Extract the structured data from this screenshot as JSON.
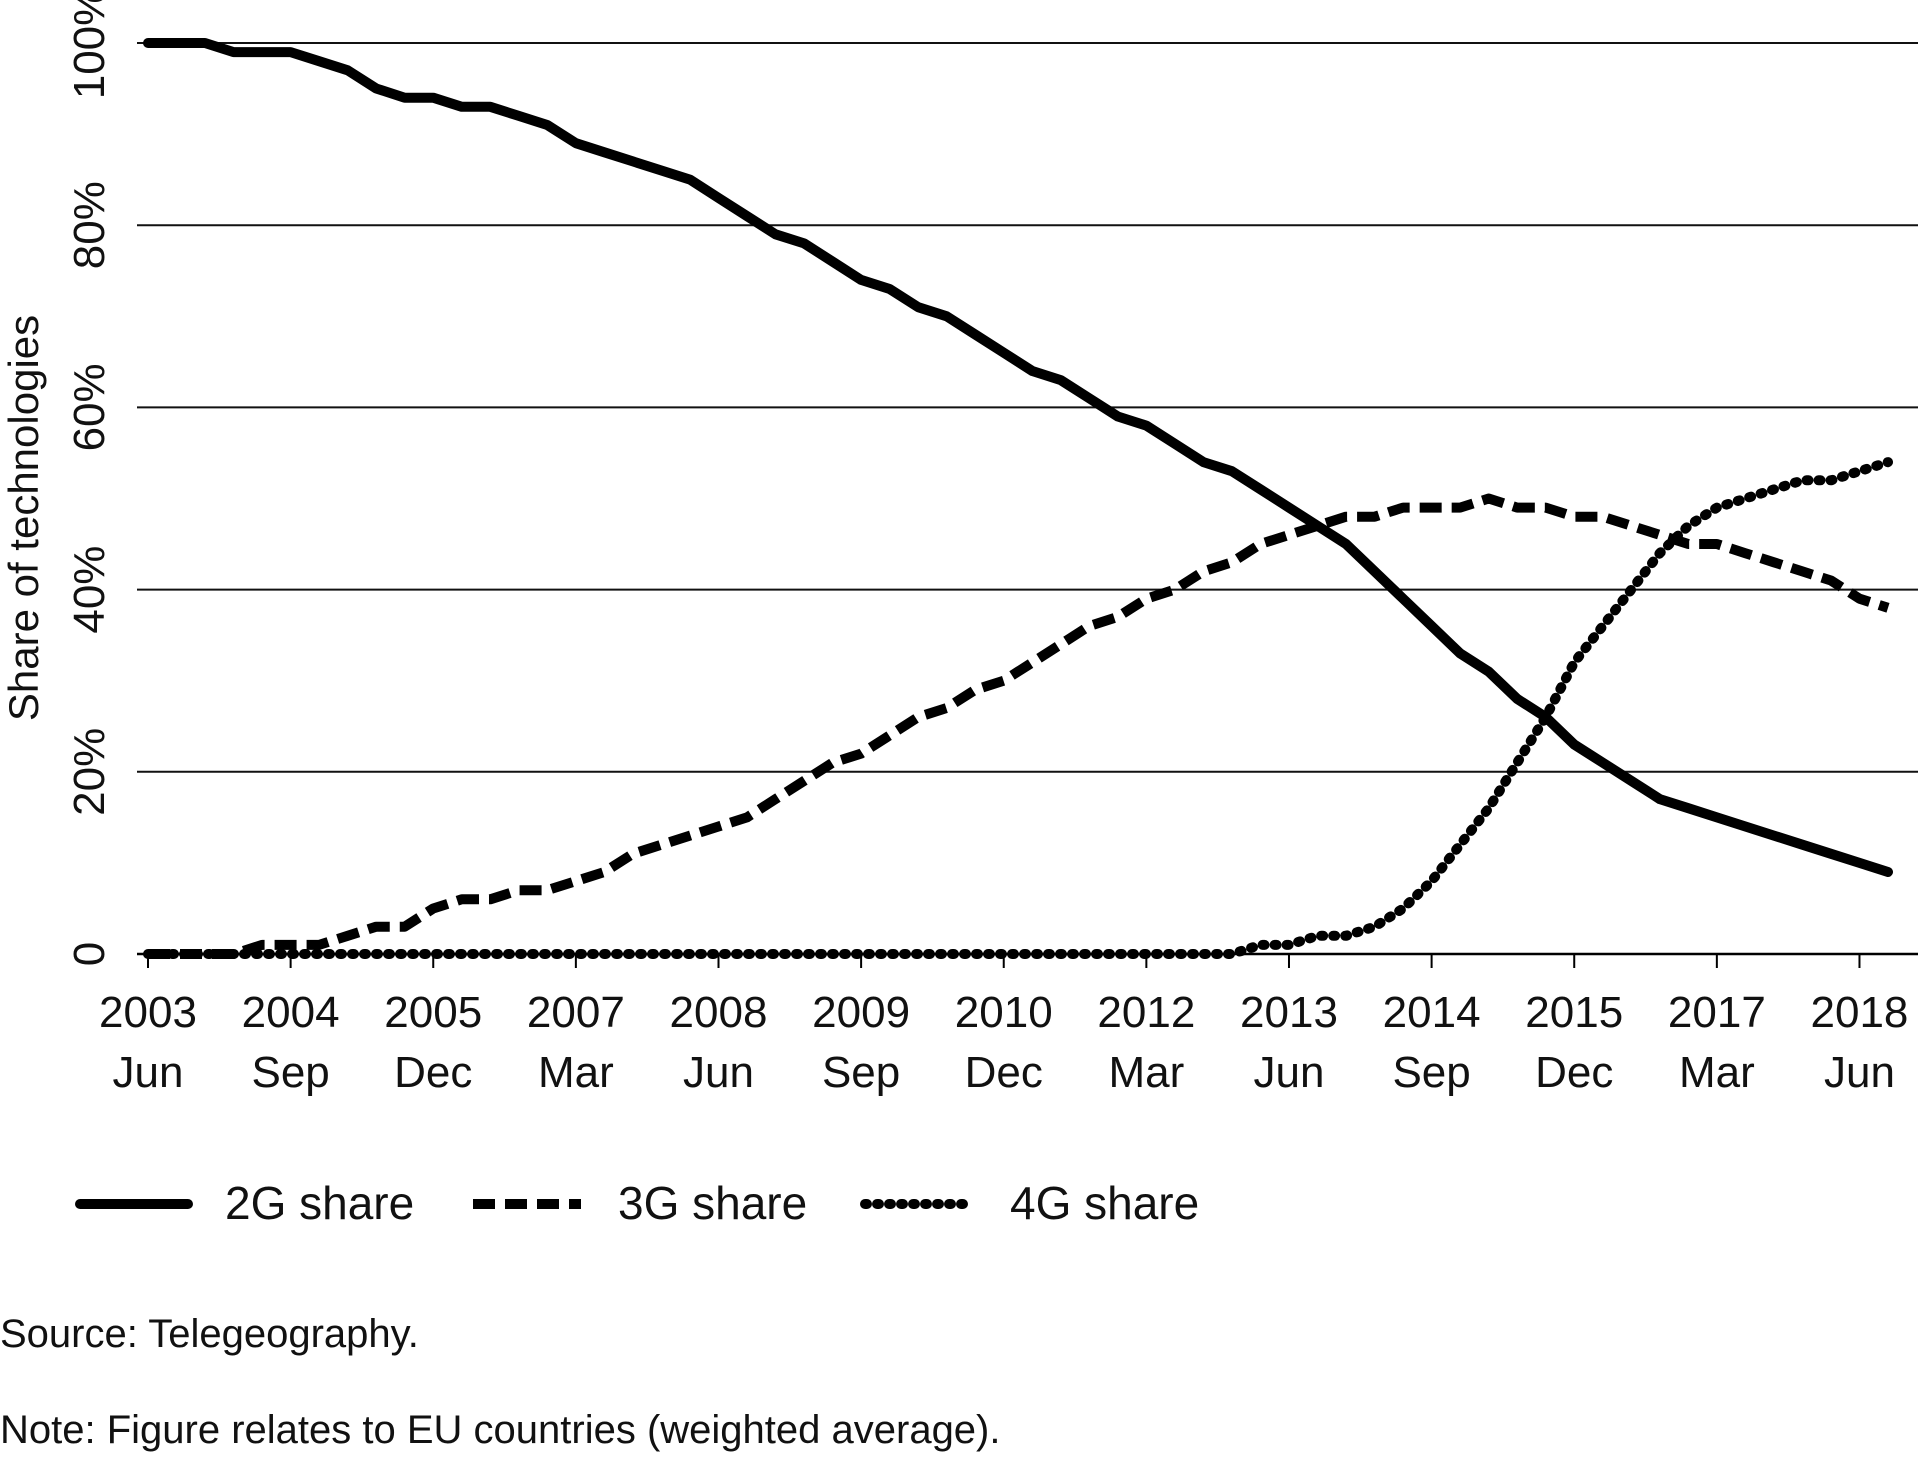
{
  "chart_data": {
    "type": "line",
    "title": "",
    "ylabel": "Share of technologies",
    "xlabel": "",
    "ylim": [
      0,
      100
    ],
    "grid": "horizontal",
    "legend_position": "bottom",
    "y_ticks": [
      {
        "value": 0,
        "label": "0"
      },
      {
        "value": 20,
        "label": "20%"
      },
      {
        "value": 40,
        "label": "40%"
      },
      {
        "value": 60,
        "label": "60%"
      },
      {
        "value": 80,
        "label": "80%"
      },
      {
        "value": 100,
        "label": "100%"
      }
    ],
    "x_ticks": [
      {
        "year": "2003",
        "month": "Jun"
      },
      {
        "year": "2004",
        "month": "Sep"
      },
      {
        "year": "2005",
        "month": "Dec"
      },
      {
        "year": "2007",
        "month": "Mar"
      },
      {
        "year": "2008",
        "month": "Jun"
      },
      {
        "year": "2009",
        "month": "Sep"
      },
      {
        "year": "2010",
        "month": "Dec"
      },
      {
        "year": "2012",
        "month": "Mar"
      },
      {
        "year": "2013",
        "month": "Jun"
      },
      {
        "year": "2014",
        "month": "Sep"
      },
      {
        "year": "2015",
        "month": "Dec"
      },
      {
        "year": "2017",
        "month": "Mar"
      },
      {
        "year": "2018",
        "month": "Jun"
      }
    ],
    "x": [
      "2003-06",
      "2003-09",
      "2003-12",
      "2004-03",
      "2004-06",
      "2004-09",
      "2004-12",
      "2005-03",
      "2005-06",
      "2005-09",
      "2005-12",
      "2006-03",
      "2006-06",
      "2006-09",
      "2006-12",
      "2007-03",
      "2007-06",
      "2007-09",
      "2007-12",
      "2008-03",
      "2008-06",
      "2008-09",
      "2008-12",
      "2009-03",
      "2009-06",
      "2009-09",
      "2009-12",
      "2010-03",
      "2010-06",
      "2010-09",
      "2010-12",
      "2011-03",
      "2011-06",
      "2011-09",
      "2011-12",
      "2012-03",
      "2012-06",
      "2012-09",
      "2012-12",
      "2013-03",
      "2013-06",
      "2013-09",
      "2013-12",
      "2014-03",
      "2014-06",
      "2014-09",
      "2014-12",
      "2015-03",
      "2015-06",
      "2015-09",
      "2015-12",
      "2016-03",
      "2016-06",
      "2016-09",
      "2016-12",
      "2017-03",
      "2017-06",
      "2017-09",
      "2017-12",
      "2018-03",
      "2018-06",
      "2018-09"
    ],
    "series": [
      {
        "name": "2G share",
        "style": "solid",
        "values": [
          100,
          100,
          100,
          99,
          99,
          99,
          98,
          97,
          95,
          94,
          94,
          93,
          93,
          92,
          91,
          89,
          88,
          87,
          86,
          85,
          83,
          81,
          79,
          78,
          76,
          74,
          73,
          71,
          70,
          68,
          66,
          64,
          63,
          61,
          59,
          58,
          56,
          54,
          53,
          51,
          49,
          47,
          45,
          42,
          39,
          36,
          33,
          31,
          28,
          26,
          23,
          21,
          19,
          17,
          16,
          15,
          14,
          13,
          12,
          11,
          10,
          9
        ]
      },
      {
        "name": "3G share",
        "style": "dashed",
        "values": [
          0,
          0,
          0,
          0,
          1,
          1,
          1,
          2,
          3,
          3,
          5,
          6,
          6,
          7,
          7,
          8,
          9,
          11,
          12,
          13,
          14,
          15,
          17,
          19,
          21,
          22,
          24,
          26,
          27,
          29,
          30,
          32,
          34,
          36,
          37,
          39,
          40,
          42,
          43,
          45,
          46,
          47,
          48,
          48,
          49,
          49,
          49,
          50,
          49,
          49,
          48,
          48,
          47,
          46,
          45,
          45,
          44,
          43,
          42,
          41,
          39,
          38
        ]
      },
      {
        "name": "4G share",
        "style": "dotted",
        "values": [
          0,
          0,
          0,
          0,
          0,
          0,
          0,
          0,
          0,
          0,
          0,
          0,
          0,
          0,
          0,
          0,
          0,
          0,
          0,
          0,
          0,
          0,
          0,
          0,
          0,
          0,
          0,
          0,
          0,
          0,
          0,
          0,
          0,
          0,
          0,
          0,
          0,
          0,
          0,
          1,
          1,
          2,
          2,
          3,
          5,
          8,
          12,
          16,
          21,
          26,
          32,
          36,
          40,
          44,
          47,
          49,
          50,
          51,
          52,
          52,
          53,
          54
        ]
      }
    ]
  },
  "notes": {
    "source": "Source: Telegeography.",
    "figure": "Note: Figure relates to EU countries (weighted average)."
  }
}
